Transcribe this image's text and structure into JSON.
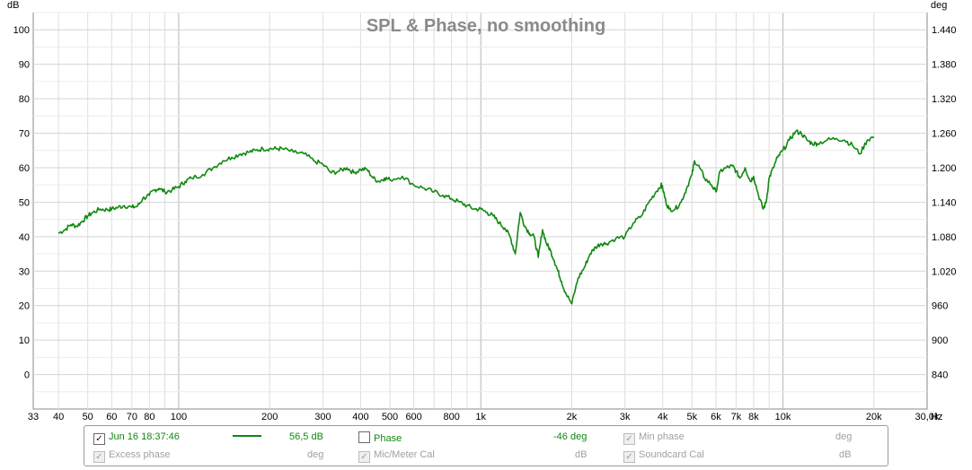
{
  "title": "SPL & Phase, no smoothing",
  "left_unit": "dB",
  "right_unit": "deg",
  "x_unit": "Hz",
  "chart_data": {
    "type": "line",
    "title": "SPL & Phase, no smoothing",
    "xscale": "log",
    "xlim": [
      33,
      30000
    ],
    "ylim": [
      -10,
      105
    ],
    "y2lim": [
      780,
      1470
    ],
    "xlabel": "Hz",
    "ylabel": "dB",
    "y2label": "deg",
    "x_ticks": [
      33,
      40,
      50,
      60,
      70,
      80,
      100,
      200,
      300,
      400,
      500,
      600,
      800,
      1000,
      2000,
      3000,
      4000,
      5000,
      6000,
      7000,
      8000,
      10000,
      20000,
      30000
    ],
    "x_tick_labels": [
      "33",
      "40",
      "50",
      "60",
      "70",
      "80",
      "100",
      "200",
      "300",
      "400",
      "500",
      "600",
      "800",
      "1k",
      "2k",
      "3k",
      "4k",
      "5k",
      "6k",
      "7k",
      "8k",
      "10k",
      "20k",
      "30,0k"
    ],
    "y_ticks": [
      0,
      10,
      20,
      30,
      40,
      50,
      60,
      70,
      80,
      90,
      100
    ],
    "y2_ticks": [
      840,
      900,
      960,
      1020,
      1080,
      1140,
      1200,
      1260,
      1320,
      1380,
      1440
    ],
    "y2_tick_labels": [
      "840",
      "900",
      "960",
      "1.020",
      "1.080",
      "1.140",
      "1.200",
      "1.260",
      "1.320",
      "1.380",
      "1.440"
    ],
    "grid": true,
    "series": [
      {
        "name": "Jun 16 18:37:46",
        "color": "#118811",
        "x": [
          40,
          42,
          44,
          46,
          48,
          50,
          52,
          55,
          58,
          60,
          63,
          66,
          70,
          73,
          76,
          80,
          83,
          86,
          90,
          95,
          100,
          105,
          110,
          120,
          130,
          140,
          150,
          160,
          170,
          180,
          190,
          200,
          210,
          220,
          240,
          260,
          280,
          300,
          320,
          340,
          360,
          380,
          400,
          420,
          440,
          460,
          480,
          500,
          550,
          600,
          650,
          700,
          750,
          800,
          850,
          900,
          950,
          1000,
          1050,
          1100,
          1150,
          1200,
          1250,
          1300,
          1350,
          1400,
          1450,
          1500,
          1550,
          1600,
          1650,
          1700,
          1750,
          1800,
          1850,
          1900,
          2000,
          2100,
          2200,
          2300,
          2400,
          2500,
          2600,
          2800,
          3000,
          3200,
          3400,
          3600,
          3800,
          3950,
          4000,
          4100,
          4200,
          4400,
          4600,
          4800,
          5000,
          5100,
          5300,
          5500,
          5800,
          6000,
          6200,
          6500,
          6800,
          7000,
          7200,
          7500,
          7800,
          8000,
          8300,
          8600,
          8800,
          9000,
          9300,
          9600,
          10000,
          10500,
          11000,
          11500,
          12000,
          12500,
          13000,
          14000,
          15000,
          16000,
          17000,
          18000,
          19000,
          20000
        ],
        "values": [
          41,
          42,
          43.5,
          43,
          44.5,
          46,
          47,
          48,
          47.8,
          48,
          48.5,
          49,
          48.5,
          48.8,
          51,
          52,
          53.5,
          54,
          53,
          53.5,
          54.5,
          56,
          57,
          58,
          60,
          62,
          63,
          64,
          64.5,
          65,
          65.5,
          65.5,
          65.5,
          65.5,
          64.5,
          64,
          62,
          61,
          58.5,
          59,
          60,
          58.5,
          59.5,
          59.5,
          57,
          56,
          57,
          56.5,
          57.5,
          55,
          54,
          53,
          52,
          51,
          50,
          49,
          48,
          48,
          47,
          46,
          44,
          42.5,
          40,
          35,
          47,
          43,
          41,
          40,
          34,
          42,
          38,
          36,
          33,
          30,
          27,
          24,
          20.5,
          28,
          31,
          35,
          37,
          38,
          38,
          39.5,
          40,
          44,
          46,
          50,
          53,
          55,
          54,
          50,
          48,
          48,
          50,
          54,
          58,
          62,
          60,
          57,
          55,
          53,
          59,
          60,
          60.5,
          59,
          57,
          60,
          56,
          57.5,
          52,
          48,
          50,
          57,
          60,
          63,
          65,
          68,
          70.5,
          70,
          68,
          67,
          67,
          68,
          68.5,
          68,
          66.5,
          64,
          68,
          69
        ]
      }
    ]
  },
  "legend": {
    "row1": {
      "measurement": "Jun 16 18:37:46",
      "measurement_value": "56,5 dB",
      "phase_label": "Phase",
      "phase_value": "-46 deg",
      "min_phase_label": "Min phase",
      "min_phase_unit": "deg"
    },
    "row2": {
      "excess_phase_label": "Excess phase",
      "excess_phase_unit": "deg",
      "mic_cal_label": "Mic/Meter Cal",
      "mic_cal_unit": "dB",
      "soundcard_cal_label": "Soundcard Cal",
      "soundcard_cal_unit": "dB"
    }
  }
}
